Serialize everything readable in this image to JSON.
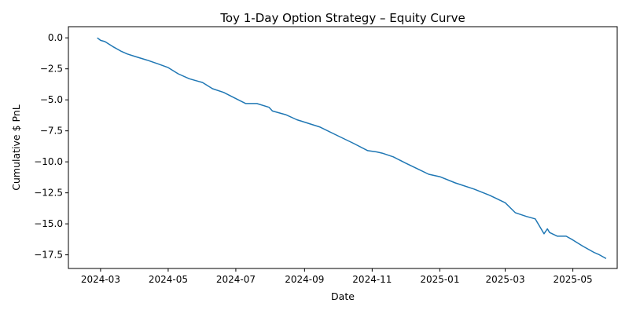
{
  "chart_data": {
    "type": "line",
    "title": "Toy 1-Day Option Strategy – Equity Curve",
    "xlabel": "Date",
    "ylabel": "Cumulative $ PnL",
    "xlim": [
      "2024-02-01",
      "2025-06-10"
    ],
    "ylim": [
      -18.6,
      0.9
    ],
    "grid": false,
    "line_color": "#1f77b4",
    "x_ticks": [
      "2024-03-01",
      "2024-05-01",
      "2024-07-01",
      "2024-09-01",
      "2024-11-01",
      "2025-01-01",
      "2025-03-01",
      "2025-05-01"
    ],
    "x_tick_labels": [
      "2024-03",
      "2024-05",
      "2024-07",
      "2024-09",
      "2024-11",
      "2025-01",
      "2025-03",
      "2025-05"
    ],
    "y_ticks": [
      0.0,
      -2.5,
      -5.0,
      -7.5,
      -10.0,
      -12.5,
      -15.0,
      -17.5
    ],
    "y_tick_labels": [
      "0.0",
      "−2.5",
      "−5.0",
      "−7.5",
      "−10.0",
      "−12.5",
      "−15.0",
      "−17.5"
    ],
    "series": [
      {
        "x": [
          "2024-02-27",
          "2024-03-01",
          "2024-03-05",
          "2024-03-12",
          "2024-03-20",
          "2024-03-25",
          "2024-04-01",
          "2024-04-12",
          "2024-04-22",
          "2024-05-01",
          "2024-05-10",
          "2024-05-20",
          "2024-06-01",
          "2024-06-10",
          "2024-06-20",
          "2024-07-01",
          "2024-07-10",
          "2024-07-20",
          "2024-07-31",
          "2024-08-03",
          "2024-08-15",
          "2024-08-25",
          "2024-09-01",
          "2024-09-15",
          "2024-10-01",
          "2024-10-15",
          "2024-10-28",
          "2024-11-05",
          "2024-11-10",
          "2024-11-20",
          "2024-12-01",
          "2024-12-15",
          "2024-12-22",
          "2025-01-01",
          "2025-01-15",
          "2025-02-01",
          "2025-02-15",
          "2025-03-01",
          "2025-03-10",
          "2025-03-20",
          "2025-03-28",
          "2025-04-05",
          "2025-04-08",
          "2025-04-10",
          "2025-04-17",
          "2025-04-25",
          "2025-05-01",
          "2025-05-10",
          "2025-05-20",
          "2025-05-25",
          "2025-05-31"
        ],
        "y": [
          0.0,
          -0.2,
          -0.3,
          -0.7,
          -1.1,
          -1.3,
          -1.5,
          -1.8,
          -2.1,
          -2.4,
          -2.9,
          -3.3,
          -3.6,
          -4.1,
          -4.4,
          -4.9,
          -5.3,
          -5.3,
          -5.6,
          -5.9,
          -6.2,
          -6.6,
          -6.8,
          -7.2,
          -7.9,
          -8.5,
          -9.1,
          -9.2,
          -9.3,
          -9.6,
          -10.1,
          -10.7,
          -11.0,
          -11.2,
          -11.7,
          -12.2,
          -12.7,
          -13.3,
          -14.1,
          -14.4,
          -14.6,
          -15.8,
          -15.4,
          -15.7,
          -16.0,
          -16.0,
          -16.3,
          -16.8,
          -17.3,
          -17.5,
          -17.8
        ]
      }
    ]
  }
}
